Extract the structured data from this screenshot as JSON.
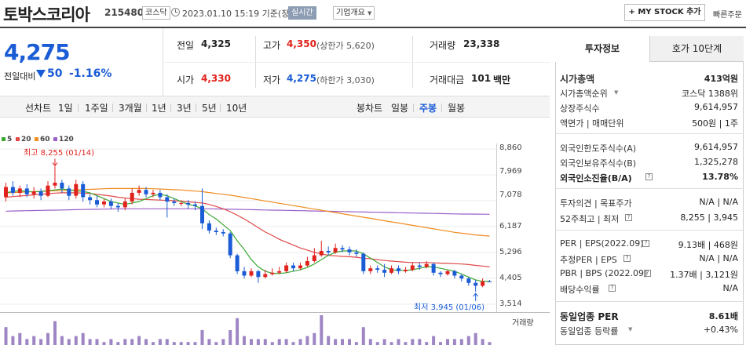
{
  "header": {
    "name": "토박스코리아",
    "code": "215480",
    "market_tag": "코스닥",
    "datetime": "2023.01.10 15:19 기준(장중)",
    "live_label": "실시간",
    "company_label": "기업개요",
    "mystock_label": "+ MY STOCK 추가",
    "quick_label": "빠른주문"
  },
  "quote": {
    "price": "4,275",
    "change_label": "전일대비",
    "change_value": "50",
    "change_pct": "-1.16%",
    "prev_label": "전일",
    "prev": "4,325",
    "high_label": "고가",
    "high": "4,350",
    "high_limit": "(상한가 5,620)",
    "volume_label": "거래량",
    "volume": "23,338",
    "open_label": "시가",
    "open": "4,330",
    "low_label": "저가",
    "low": "4,275",
    "low_limit": "(하한가 3,030)",
    "amount_label": "거래대금",
    "amount": "101",
    "amount_unit": "백만"
  },
  "toolbar": {
    "line_label": "선차트",
    "line_periods": [
      "1일",
      "1주일",
      "3개월",
      "1년",
      "3년",
      "5년",
      "10년"
    ],
    "candle_label": "봉차트",
    "candle_periods": [
      "일봉",
      "주봉",
      "월봉"
    ],
    "selected": "주봉"
  },
  "chart_data": {
    "type": "candlestick",
    "ma_legend": [
      {
        "name": "5",
        "color": "#3aa832"
      },
      {
        "name": "20",
        "color": "#e04848"
      },
      {
        "name": "60",
        "color": "#f08c20"
      },
      {
        "name": "120",
        "color": "#9a60c8"
      }
    ],
    "y_ticks": [
      "8,860",
      "7,969",
      "7,078",
      "6,187",
      "5,296",
      "4,405",
      "3,514"
    ],
    "ylim": [
      3514,
      8860
    ],
    "high_annotation": "최고 8,255 (01/14)",
    "low_annotation": "최저 3,945 (01/06)",
    "volume_label": "거래량",
    "up_color": "#e0221c",
    "down_color": "#1a5bd6",
    "candles": [
      [
        7200,
        7550,
        7700,
        7050
      ],
      [
        7550,
        7350,
        7750,
        7250
      ],
      [
        7350,
        7500,
        7600,
        7200
      ],
      [
        7500,
        7300,
        7650,
        7200
      ],
      [
        7300,
        7400,
        7550,
        7150
      ],
      [
        7400,
        7250,
        7500,
        7100
      ],
      [
        7250,
        7600,
        7750,
        7200
      ],
      [
        7600,
        7700,
        8255,
        7500
      ],
      [
        7700,
        7500,
        7800,
        7350
      ],
      [
        7500,
        7250,
        7600,
        7100
      ],
      [
        7250,
        7650,
        7800,
        7150
      ],
      [
        7650,
        7200,
        7750,
        7050
      ],
      [
        7200,
        7100,
        7300,
        6950
      ],
      [
        7100,
        6950,
        7250,
        6850
      ],
      [
        6950,
        7050,
        7150,
        6850
      ],
      [
        7050,
        6900,
        7150,
        6800
      ],
      [
        6900,
        6850,
        7000,
        6700
      ],
      [
        6850,
        7050,
        7150,
        6750
      ],
      [
        7050,
        7350,
        7500,
        6950
      ],
      [
        7350,
        7450,
        7600,
        7250
      ],
      [
        7450,
        7300,
        7550,
        7200
      ],
      [
        7300,
        7350,
        7450,
        7200
      ],
      [
        7350,
        7200,
        7450,
        7100
      ],
      [
        7200,
        7050,
        7300,
        6500
      ],
      [
        7050,
        7000,
        7150,
        6900
      ],
      [
        7000,
        7000,
        7100,
        6900
      ],
      [
        7000,
        6950,
        7100,
        6800
      ],
      [
        6950,
        6900,
        7050,
        6750
      ],
      [
        6900,
        6300,
        7500,
        6100
      ],
      [
        6300,
        6050,
        6400,
        5950
      ],
      [
        6050,
        6000,
        6150,
        5900
      ],
      [
        6000,
        5950,
        6100,
        5850
      ],
      [
        5950,
        5200,
        6000,
        5100
      ],
      [
        5200,
        4650,
        5250,
        4550
      ],
      [
        4650,
        4500,
        4800,
        4400
      ],
      [
        4500,
        4650,
        4750,
        4450
      ],
      [
        4650,
        4450,
        4700,
        4250
      ],
      [
        4450,
        4550,
        4700,
        4400
      ],
      [
        4550,
        4600,
        4750,
        4500
      ],
      [
        4600,
        4650,
        4800,
        4550
      ],
      [
        4650,
        4850,
        4950,
        4600
      ],
      [
        4850,
        4750,
        4950,
        4650
      ],
      [
        4750,
        4850,
        4950,
        4700
      ],
      [
        4850,
        5000,
        5150,
        4800
      ],
      [
        5000,
        5200,
        5450,
        4950
      ],
      [
        5200,
        5350,
        5700,
        5150
      ],
      [
        5350,
        5300,
        5500,
        5200
      ],
      [
        5300,
        5450,
        5600,
        5250
      ],
      [
        5450,
        5400,
        5550,
        5300
      ],
      [
        5400,
        5300,
        5500,
        5200
      ],
      [
        5300,
        5250,
        5400,
        5150
      ],
      [
        5250,
        4650,
        5300,
        4550
      ],
      [
        4650,
        4750,
        4850,
        4550
      ],
      [
        4750,
        4700,
        4850,
        4600
      ],
      [
        4700,
        4600,
        4900,
        4450
      ],
      [
        4600,
        4750,
        4850,
        4550
      ],
      [
        4750,
        4650,
        4850,
        4550
      ],
      [
        4650,
        4700,
        4800,
        4600
      ],
      [
        4700,
        4850,
        4950,
        4650
      ],
      [
        4850,
        4800,
        4950,
        4700
      ],
      [
        4800,
        4900,
        5000,
        4750
      ],
      [
        4900,
        4600,
        4950,
        4500
      ],
      [
        4600,
        4550,
        4650,
        4450
      ],
      [
        4550,
        4650,
        4700,
        4500
      ],
      [
        4650,
        4500,
        4700,
        4400
      ],
      [
        4500,
        4400,
        4550,
        4300
      ],
      [
        4400,
        4250,
        4450,
        4150
      ],
      [
        4250,
        4150,
        4350,
        3945
      ],
      [
        4150,
        4300,
        4400,
        4100
      ],
      [
        4300,
        4275,
        4350,
        4275
      ]
    ],
    "ma5": [
      7350,
      7400,
      7420,
      7400,
      7380,
      7400,
      7420,
      7450,
      7480,
      7450,
      7420,
      7400,
      7350,
      7250,
      7150,
      7050,
      7000,
      6950,
      7000,
      7050,
      7150,
      7250,
      7300,
      7250,
      7150,
      7050,
      6950,
      6900,
      6800,
      6600,
      6450,
      6250,
      6050,
      5700,
      5400,
      5050,
      4800,
      4650,
      4580,
      4570,
      4600,
      4650,
      4700,
      4780,
      4900,
      5050,
      5200,
      5300,
      5350,
      5350,
      5350,
      5250,
      5100,
      4950,
      4800,
      4700,
      4680,
      4680,
      4700,
      4750,
      4800,
      4800,
      4750,
      4700,
      4650,
      4550,
      4450,
      4350,
      4300,
      4300
    ],
    "ma20": [
      7200,
      7220,
      7240,
      7260,
      7280,
      7300,
      7320,
      7340,
      7350,
      7350,
      7350,
      7340,
      7330,
      7300,
      7270,
      7240,
      7200,
      7170,
      7150,
      7130,
      7120,
      7110,
      7100,
      7090,
      7080,
      7060,
      7040,
      7020,
      7000,
      6950,
      6880,
      6800,
      6700,
      6580,
      6450,
      6300,
      6150,
      6000,
      5880,
      5750,
      5650,
      5550,
      5450,
      5380,
      5300,
      5250,
      5200,
      5180,
      5160,
      5150,
      5130,
      5100,
      5080,
      5050,
      5020,
      5000,
      4980,
      4960,
      4950,
      4950,
      4950,
      4940,
      4930,
      4920,
      4910,
      4900,
      4880,
      4850,
      4830,
      4800
    ],
    "ma60": [
      7350,
      7360,
      7370,
      7380,
      7390,
      7400,
      7410,
      7420,
      7430,
      7440,
      7450,
      7460,
      7470,
      7480,
      7490,
      7500,
      7500,
      7500,
      7500,
      7500,
      7500,
      7490,
      7480,
      7470,
      7460,
      7450,
      7430,
      7410,
      7390,
      7360,
      7330,
      7300,
      7270,
      7230,
      7190,
      7150,
      7110,
      7070,
      7030,
      6990,
      6950,
      6910,
      6870,
      6830,
      6790,
      6750,
      6710,
      6670,
      6630,
      6590,
      6550,
      6510,
      6470,
      6430,
      6390,
      6350,
      6310,
      6270,
      6230,
      6190,
      6150,
      6110,
      6070,
      6030,
      5990,
      5960,
      5930,
      5900,
      5880,
      5860
    ],
    "ma120": [
      6720,
      6725,
      6730,
      6735,
      6740,
      6745,
      6750,
      6755,
      6760,
      6765,
      6770,
      6775,
      6780,
      6785,
      6790,
      6795,
      6800,
      6800,
      6800,
      6800,
      6800,
      6800,
      6800,
      6800,
      6800,
      6800,
      6800,
      6800,
      6800,
      6800,
      6795,
      6790,
      6785,
      6780,
      6775,
      6770,
      6765,
      6760,
      6755,
      6750,
      6745,
      6740,
      6735,
      6730,
      6725,
      6720,
      6715,
      6710,
      6705,
      6700,
      6695,
      6690,
      6685,
      6680,
      6675,
      6670,
      6665,
      6660,
      6655,
      6650,
      6645,
      6640,
      6635,
      6630,
      6625,
      6620,
      6618,
      6616,
      6614,
      6612
    ],
    "volumes": [
      6,
      3,
      4,
      2,
      3,
      2,
      4,
      8,
      3,
      2,
      3,
      4,
      2,
      2,
      1,
      2,
      1,
      2,
      2,
      3,
      2,
      1,
      2,
      2,
      1,
      1,
      1,
      1,
      5,
      2,
      1,
      2,
      5,
      9,
      3,
      2,
      2,
      2,
      1,
      2,
      2,
      1,
      2,
      3,
      4,
      10,
      3,
      2,
      2,
      2,
      1,
      6,
      2,
      1,
      2,
      1,
      2,
      1,
      2,
      2,
      1,
      3,
      1,
      2,
      2,
      2,
      3,
      4,
      2,
      1
    ]
  },
  "panel": {
    "tab_info": "투자정보",
    "tab_ask": "호가 10단계",
    "market_cap_label": "시가총액",
    "market_cap": "413억원",
    "cap_rank_label": "시가총액순위",
    "cap_rank": "코스닥 1388위",
    "shares_label": "상장주식수",
    "shares": "9,614,957",
    "face_label": "액면가 | 매매단위",
    "face": "500원 | 1주",
    "foreign_limit_label": "외국인한도주식수(A)",
    "foreign_limit": "9,614,957",
    "foreign_hold_label": "외국인보유주식수(B)",
    "foreign_hold": "1,325,278",
    "foreign_ratio_label": "외국인소진율(B/A)",
    "foreign_ratio": "13.78%",
    "opinion_label": "투자의견 | 목표주가",
    "opinion": "N/A | N/A",
    "week52_label": "52주최고 | 최저",
    "week52": "8,255 | 3,945",
    "per_label": "PER | EPS(2022.09)",
    "per": "9.13배 | 468원",
    "est_label": "추정PER | EPS",
    "est": "N/A | N/A",
    "pbr_label": "PBR | BPS (2022.09)",
    "pbr": "1.37배 | 3,121원",
    "div_label": "배당수익률",
    "div": "N/A",
    "ind_per_label": "동일업종 PER",
    "ind_per": "8.61배",
    "ind_rate_label": "동일업종 등락률",
    "ind_rate": "+0.43%"
  }
}
